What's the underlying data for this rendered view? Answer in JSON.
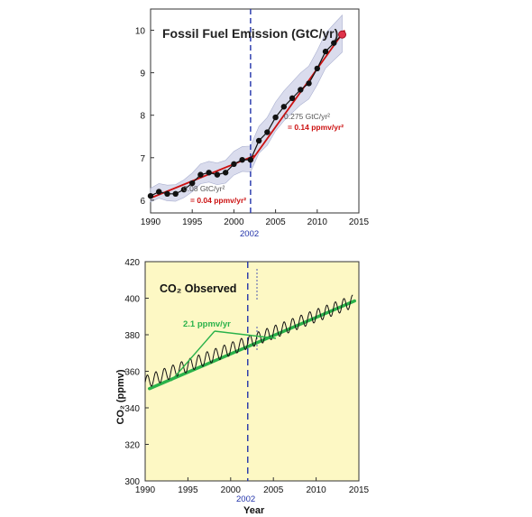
{
  "chart_data": [
    {
      "type": "line",
      "title": "Fossil Fuel Emission (GtC/yr)",
      "xlim": [
        1990,
        2015
      ],
      "ylim": [
        5.7,
        10.5
      ],
      "xticks": [
        "1990",
        "1995",
        "2000",
        "2005",
        "2010",
        "2015"
      ],
      "yticks": [
        "6",
        "7",
        "8",
        "9",
        "10"
      ],
      "marker_label": "2002",
      "marker_x": 2002,
      "series": [
        {
          "x": [
            1990,
            1991,
            1992,
            1993,
            1994,
            1995,
            1996,
            1997,
            1998,
            1999,
            2000,
            2001,
            2002,
            2003,
            2004,
            2005,
            2006,
            2007,
            2008,
            2009,
            2010,
            2011,
            2012,
            2013
          ],
          "y": [
            6.1,
            6.2,
            6.15,
            6.15,
            6.25,
            6.4,
            6.6,
            6.65,
            6.6,
            6.65,
            6.85,
            6.95,
            6.95,
            7.4,
            7.6,
            7.95,
            8.2,
            8.4,
            8.6,
            8.75,
            9.1,
            9.5,
            9.7,
            9.9
          ]
        }
      ],
      "trends": [
        {
          "x": [
            1990,
            2002.5
          ],
          "y": [
            6.05,
            7.05
          ],
          "annotation_rate": "0.08 GtC/yr²",
          "annotation_ppm": "= 0.04 ppmv/yr²"
        },
        {
          "x": [
            2002,
            2013.3
          ],
          "y": [
            6.9,
            10.0
          ],
          "annotation_rate": "0.275 GtC/yr²",
          "annotation_ppm": "= 0.14 ppmv/yr²"
        }
      ],
      "uncertainty_band": true,
      "colors": {
        "data": "#111111",
        "trend": "#cc1111",
        "band": "#c9cce4",
        "marker": "#2233aa",
        "last_point": "#e0334a"
      }
    },
    {
      "type": "line",
      "title": "CO₂ Observed",
      "xlabel": "Year",
      "ylabel": "CO₂ (ppmv)",
      "xlim": [
        1990,
        2015
      ],
      "ylim": [
        300,
        420
      ],
      "xticks": [
        "1990",
        "1995",
        "2000",
        "2005",
        "2010",
        "2015"
      ],
      "yticks": [
        "300",
        "320",
        "340",
        "360",
        "380",
        "400",
        "420"
      ],
      "marker_label": "2002",
      "marker_x": 2002,
      "trend": {
        "x": [
          1990.5,
          2014.5
        ],
        "y": [
          350.5,
          398.5
        ],
        "label": "2.1 ppmv/yr"
      },
      "seasonal_cycle": {
        "start_year": 1990,
        "end_year": 2014.3,
        "start_value": 354,
        "growth_per_year": 1.82,
        "amplitude": 3.5
      },
      "colors": {
        "background": "#fdf8c4",
        "data": "#111111",
        "trend": "#2ab24a",
        "marker": "#2233aa"
      }
    }
  ]
}
